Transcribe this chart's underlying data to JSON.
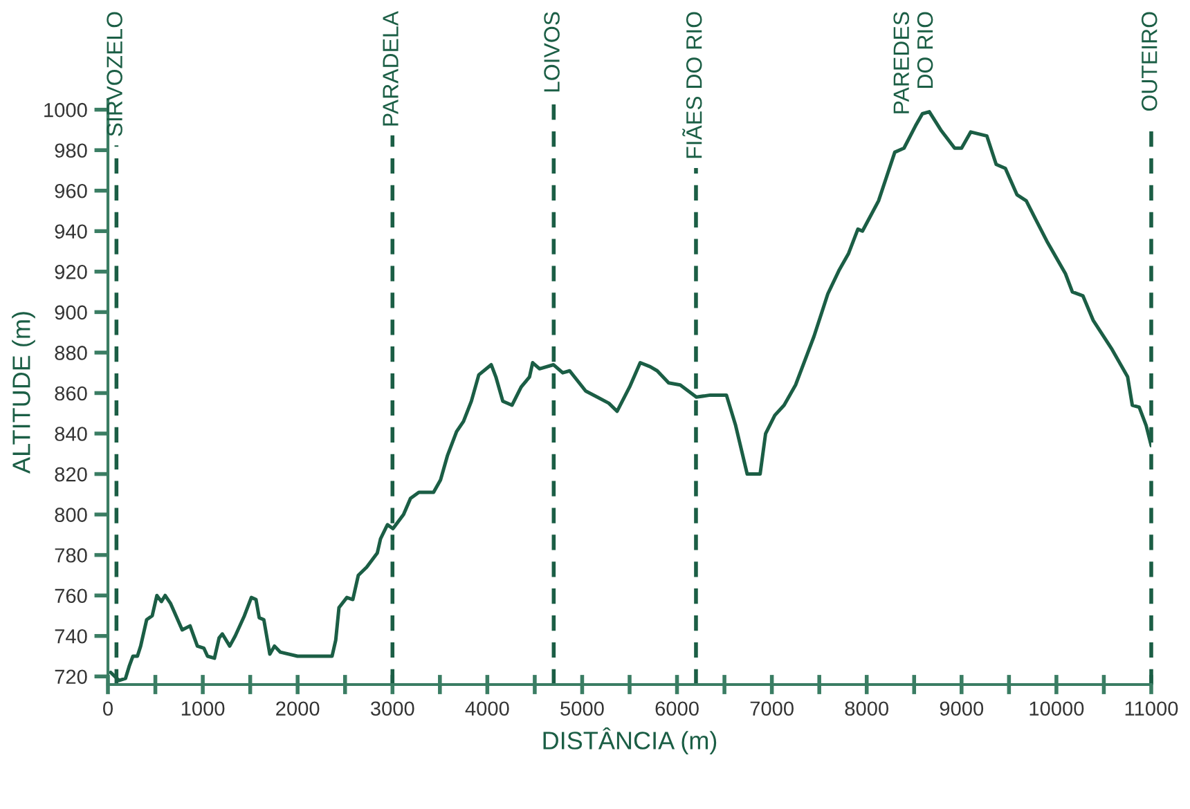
{
  "chart_data": {
    "type": "line",
    "xlabel": "DISTÂNCIA (m)",
    "ylabel": "ALTITUDE (m)",
    "xlim": [
      0,
      11000
    ],
    "ylim": [
      716,
      1005
    ],
    "xticks": [
      0,
      {
        "value": 500,
        "label": null
      },
      1000,
      {
        "value": 1500,
        "label": null
      },
      2000,
      {
        "value": 2500,
        "label": null
      },
      3000,
      {
        "value": 3500,
        "label": null
      },
      4000,
      {
        "value": 4500,
        "label": null
      },
      5000,
      {
        "value": 5500,
        "label": null
      },
      6000,
      {
        "value": 6500,
        "label": null
      },
      7000,
      {
        "value": 7500,
        "label": null
      },
      8000,
      {
        "value": 8500,
        "label": null
      },
      9000,
      {
        "value": 9500,
        "label": null
      },
      10000,
      {
        "value": 10500,
        "label": null
      },
      11000
    ],
    "yticks": [
      720,
      740,
      760,
      780,
      800,
      820,
      840,
      860,
      880,
      900,
      920,
      940,
      960,
      980,
      1000
    ],
    "grid": false,
    "legend": false,
    "marker": "none",
    "line_style": "solid",
    "series": [
      {
        "color": "#1b5e45",
        "x": [
          29,
          117,
          185,
          224,
          263,
          311,
          345,
          408,
          467,
          516,
          564,
          603,
          661,
          783,
          866,
          943,
          1011,
          1050,
          1123,
          1172,
          1206,
          1284,
          1342,
          1439,
          1512,
          1561,
          1595,
          1644,
          1707,
          1756,
          1818,
          1999,
          2315,
          2363,
          2402,
          2436,
          2519,
          2582,
          2640,
          2728,
          2840,
          2874,
          2947,
          3005,
          3117,
          3190,
          3278,
          3433,
          3506,
          3579,
          3676,
          3749,
          3832,
          3910,
          4041,
          4090,
          4163,
          4260,
          4357,
          4445,
          4478,
          4551,
          4697,
          4795,
          4868,
          5037,
          5159,
          5281,
          5368,
          5500,
          5612,
          5718,
          5791,
          5912,
          6034,
          6204,
          6350,
          6521,
          6618,
          6740,
          6876,
          6934,
          7031,
          7129,
          7250,
          7444,
          7590,
          7712,
          7809,
          7907,
          7955,
          8125,
          8296,
          8393,
          8514,
          8587,
          8660,
          8781,
          8927,
          9000,
          9097,
          9267,
          9365,
          9462,
          9584,
          9682,
          9779,
          9900,
          10095,
          10168,
          10280,
          10387,
          10581,
          10751,
          10800,
          10873,
          10946,
          11000
        ],
        "values": [
          722,
          718,
          719,
          725,
          730,
          730,
          735,
          748,
          750,
          760,
          757,
          760,
          756,
          743,
          745,
          735,
          734,
          730,
          729,
          739,
          741,
          735,
          740,
          750,
          759,
          758,
          749,
          748,
          731,
          735,
          732,
          730,
          730,
          730,
          738,
          754,
          759,
          758,
          770,
          774,
          781,
          788,
          795,
          793,
          800,
          808,
          811,
          811,
          817,
          829,
          841,
          846,
          856,
          869,
          874,
          868,
          856,
          854,
          863,
          868,
          875,
          872,
          874,
          870,
          871,
          861,
          858,
          855,
          851,
          863,
          875,
          873,
          871,
          865,
          864,
          858,
          859,
          859,
          844,
          820,
          820,
          840,
          849,
          854,
          864,
          888,
          909,
          921,
          929,
          941,
          940,
          955,
          979,
          981,
          992,
          998,
          999,
          990,
          981,
          981,
          989,
          987,
          973,
          971,
          958,
          955,
          946,
          935,
          919,
          910,
          908,
          896,
          882,
          868,
          854,
          853,
          844,
          834
        ]
      }
    ],
    "ref_lines": [
      {
        "axis": "x",
        "value": 90,
        "label": "SIRVOZELO",
        "line_style": "dashed",
        "color": "#1b5e45"
      },
      {
        "axis": "x",
        "value": 3000,
        "label": "PARADELA",
        "line_style": "dashed",
        "color": "#1b5e45"
      },
      {
        "axis": "x",
        "value": 4700,
        "label": "LOIVOS",
        "line_style": "dashed",
        "color": "#1b5e45"
      },
      {
        "axis": "x",
        "value": 6200,
        "label": "FIÃES DO RIO",
        "line_style": "dashed",
        "color": "#1b5e45"
      },
      {
        "axis": "x",
        "value": 11000,
        "label": "OUTEIRO",
        "line_style": "dashed",
        "color": "#1b5e45"
      }
    ],
    "annotations": [
      "PAREDES\nDO RIO"
    ]
  }
}
